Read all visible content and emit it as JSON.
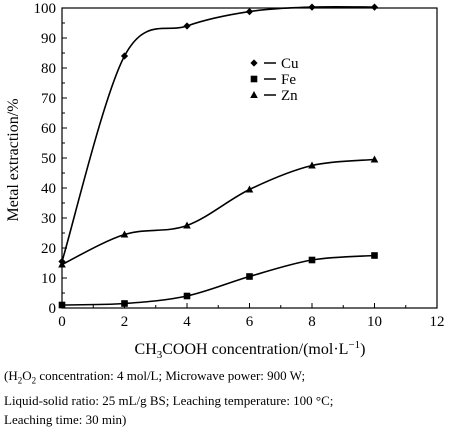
{
  "chart_data": {
    "type": "line",
    "title": "",
    "xlabel": "CH3COOH concentration/(mol·L−1)",
    "ylabel": "Metal extraction/%",
    "xlim": [
      0,
      12
    ],
    "ylim": [
      0,
      100
    ],
    "xticks": [
      "0",
      "2",
      "4",
      "6",
      "8",
      "10",
      "12"
    ],
    "yticks": [
      "0",
      "10",
      "20",
      "30",
      "40",
      "50",
      "60",
      "70",
      "80",
      "90",
      "100"
    ],
    "grid": false,
    "legend_position": "upper-middle",
    "series": [
      {
        "name": "Cu",
        "marker": "diamond",
        "x": [
          0,
          2,
          4,
          6,
          8,
          10
        ],
        "values": [
          15.5,
          84,
          94,
          98.8,
          100.3,
          100.3
        ]
      },
      {
        "name": "Fe",
        "marker": "square",
        "x": [
          0,
          2,
          4,
          6,
          8,
          10
        ],
        "values": [
          1,
          1.5,
          4,
          10.5,
          16,
          17.5
        ]
      },
      {
        "name": "Zn",
        "marker": "triangle",
        "x": [
          0,
          2,
          4,
          6,
          8,
          10
        ],
        "values": [
          14.5,
          24.5,
          27.5,
          39.5,
          47.5,
          49.5
        ]
      }
    ]
  },
  "labels": {
    "ylabel": "Metal extraction/%",
    "xlabel_main": "CH",
    "xlabel_sub1": "3",
    "xlabel_mid": "COOH concentration/(mol·L",
    "xlabel_sup": "−1",
    "xlabel_end": ")"
  },
  "caption": {
    "line1_a": "(H",
    "line1_sub1": "2",
    "line1_b": "O",
    "line1_sub2": "2",
    "line1_c": " concentration: 4 mol/L; Microwave power: 900 W;",
    "line2": "Liquid-solid ratio: 25 mL/g BS; Leaching temperature: 100 °C;",
    "line3": "Leaching time: 30 min)"
  }
}
